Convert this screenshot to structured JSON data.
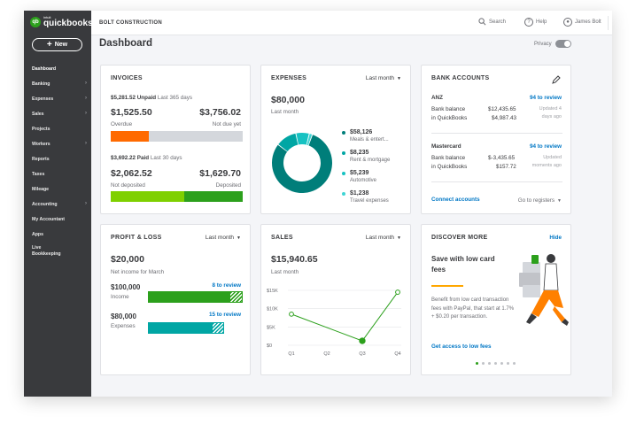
{
  "app": {
    "logo_small": "intuit",
    "logo_main": "quickbooks",
    "logo_mark": "qb"
  },
  "sidebar": {
    "new_label": "New",
    "items": [
      {
        "label": "Dashboard",
        "chevron": false
      },
      {
        "label": "Banking",
        "chevron": true
      },
      {
        "label": "Expenses",
        "chevron": true
      },
      {
        "label": "Sales",
        "chevron": true
      },
      {
        "label": "Projects",
        "chevron": false
      },
      {
        "label": "Workers",
        "chevron": true
      },
      {
        "label": "Reports",
        "chevron": false
      },
      {
        "label": "Taxes",
        "chevron": false
      },
      {
        "label": "Mileage",
        "chevron": false
      },
      {
        "label": "Accounting",
        "chevron": true
      },
      {
        "label": "My Accountant",
        "chevron": false
      },
      {
        "label": "Apps",
        "chevron": false
      },
      {
        "label": "Live Bookkeeping",
        "chevron": false
      }
    ]
  },
  "topbar": {
    "company": "BOLT CONSTRUCTION",
    "search": "Search",
    "help": "Help",
    "user": "James Bolt"
  },
  "header": {
    "title": "Dashboard",
    "privacy": "Privacy"
  },
  "invoices": {
    "title": "INVOICES",
    "unpaid_amount": "$5,281.52 Unpaid",
    "unpaid_period": "Last 365 days",
    "overdue_amount": "$1,525.50",
    "overdue_label": "Overdue",
    "notdue_amount": "$3,756.02",
    "notdue_label": "Not due yet",
    "paid_amount": "$3,692.22 Paid",
    "paid_period": "Last 30 days",
    "notdeposited_amount": "$2,062.52",
    "notdeposited_label": "Not deposited",
    "deposited_amount": "$1,629.70",
    "deposited_label": "Deposited",
    "colors": {
      "overdue": "#ff6a00",
      "notdue": "#d4d7dc",
      "notdeposited": "#7fd000",
      "deposited": "#2ca01c"
    }
  },
  "expenses": {
    "title": "EXPENSES",
    "period": "Last month",
    "total": "$80,000",
    "total_label": "Last month",
    "items": [
      {
        "amount": "$58,126",
        "category": "Meals & entert...",
        "color": "#007e7a"
      },
      {
        "amount": "$8,235",
        "category": "Rent & mortgage",
        "color": "#00a6a4"
      },
      {
        "amount": "$5,239",
        "category": "Automotive",
        "color": "#16c2c2"
      },
      {
        "amount": "$1,238",
        "category": "Travel expenses",
        "color": "#3fd4d4"
      }
    ]
  },
  "bank": {
    "title": "BANK ACCOUNTS",
    "accounts": [
      {
        "name": "ANZ",
        "review": "94 to review",
        "balance_label": "Bank balance",
        "balance": "$12,435.65",
        "qb_label": "in QuickBooks",
        "qb_balance": "$4,987.43",
        "updated1": "Updated 4",
        "updated2": "days ago"
      },
      {
        "name": "Mastercard",
        "review": "94 to review",
        "balance_label": "Bank balance",
        "balance": "$-3,435.65",
        "qb_label": "in QuickBooks",
        "qb_balance": "$157.72",
        "updated1": "Updated",
        "updated2": "moments ago"
      }
    ],
    "connect": "Connect accounts",
    "registers": "Go to registers"
  },
  "pnl": {
    "title": "PROFIT & LOSS",
    "period": "Last month",
    "net": "$20,000",
    "net_label": "Net income for March",
    "income_amount": "$100,000",
    "income_label": "Income",
    "income_review": "8 to review",
    "expenses_amount": "$80,000",
    "expenses_label": "Expenses",
    "expenses_review": "15 to review"
  },
  "sales": {
    "title": "SALES",
    "period": "Last month",
    "total": "$15,940.65",
    "total_label": "Last month"
  },
  "chart_data": {
    "type": "line",
    "x": [
      "Q1",
      "Q2",
      "Q3",
      "Q4"
    ],
    "y_ticks": [
      "$15K",
      "$10K",
      "$5K",
      "$0"
    ],
    "ylim": [
      0,
      15000
    ],
    "points": [
      {
        "x": "Q1",
        "y": 8500
      },
      {
        "x": "Q3",
        "y": 1200
      },
      {
        "x": "Q4",
        "y": 14500
      }
    ],
    "color": "#2ca01c",
    "grid": true
  },
  "discover": {
    "title": "DISCOVER MORE",
    "hide": "Hide",
    "headline": "Save with low card fees",
    "body": "Benefit from low card transaction fees with PayPal, that start at 1.7% + $0.20 per transaction.",
    "link": "Get access to low fees"
  }
}
